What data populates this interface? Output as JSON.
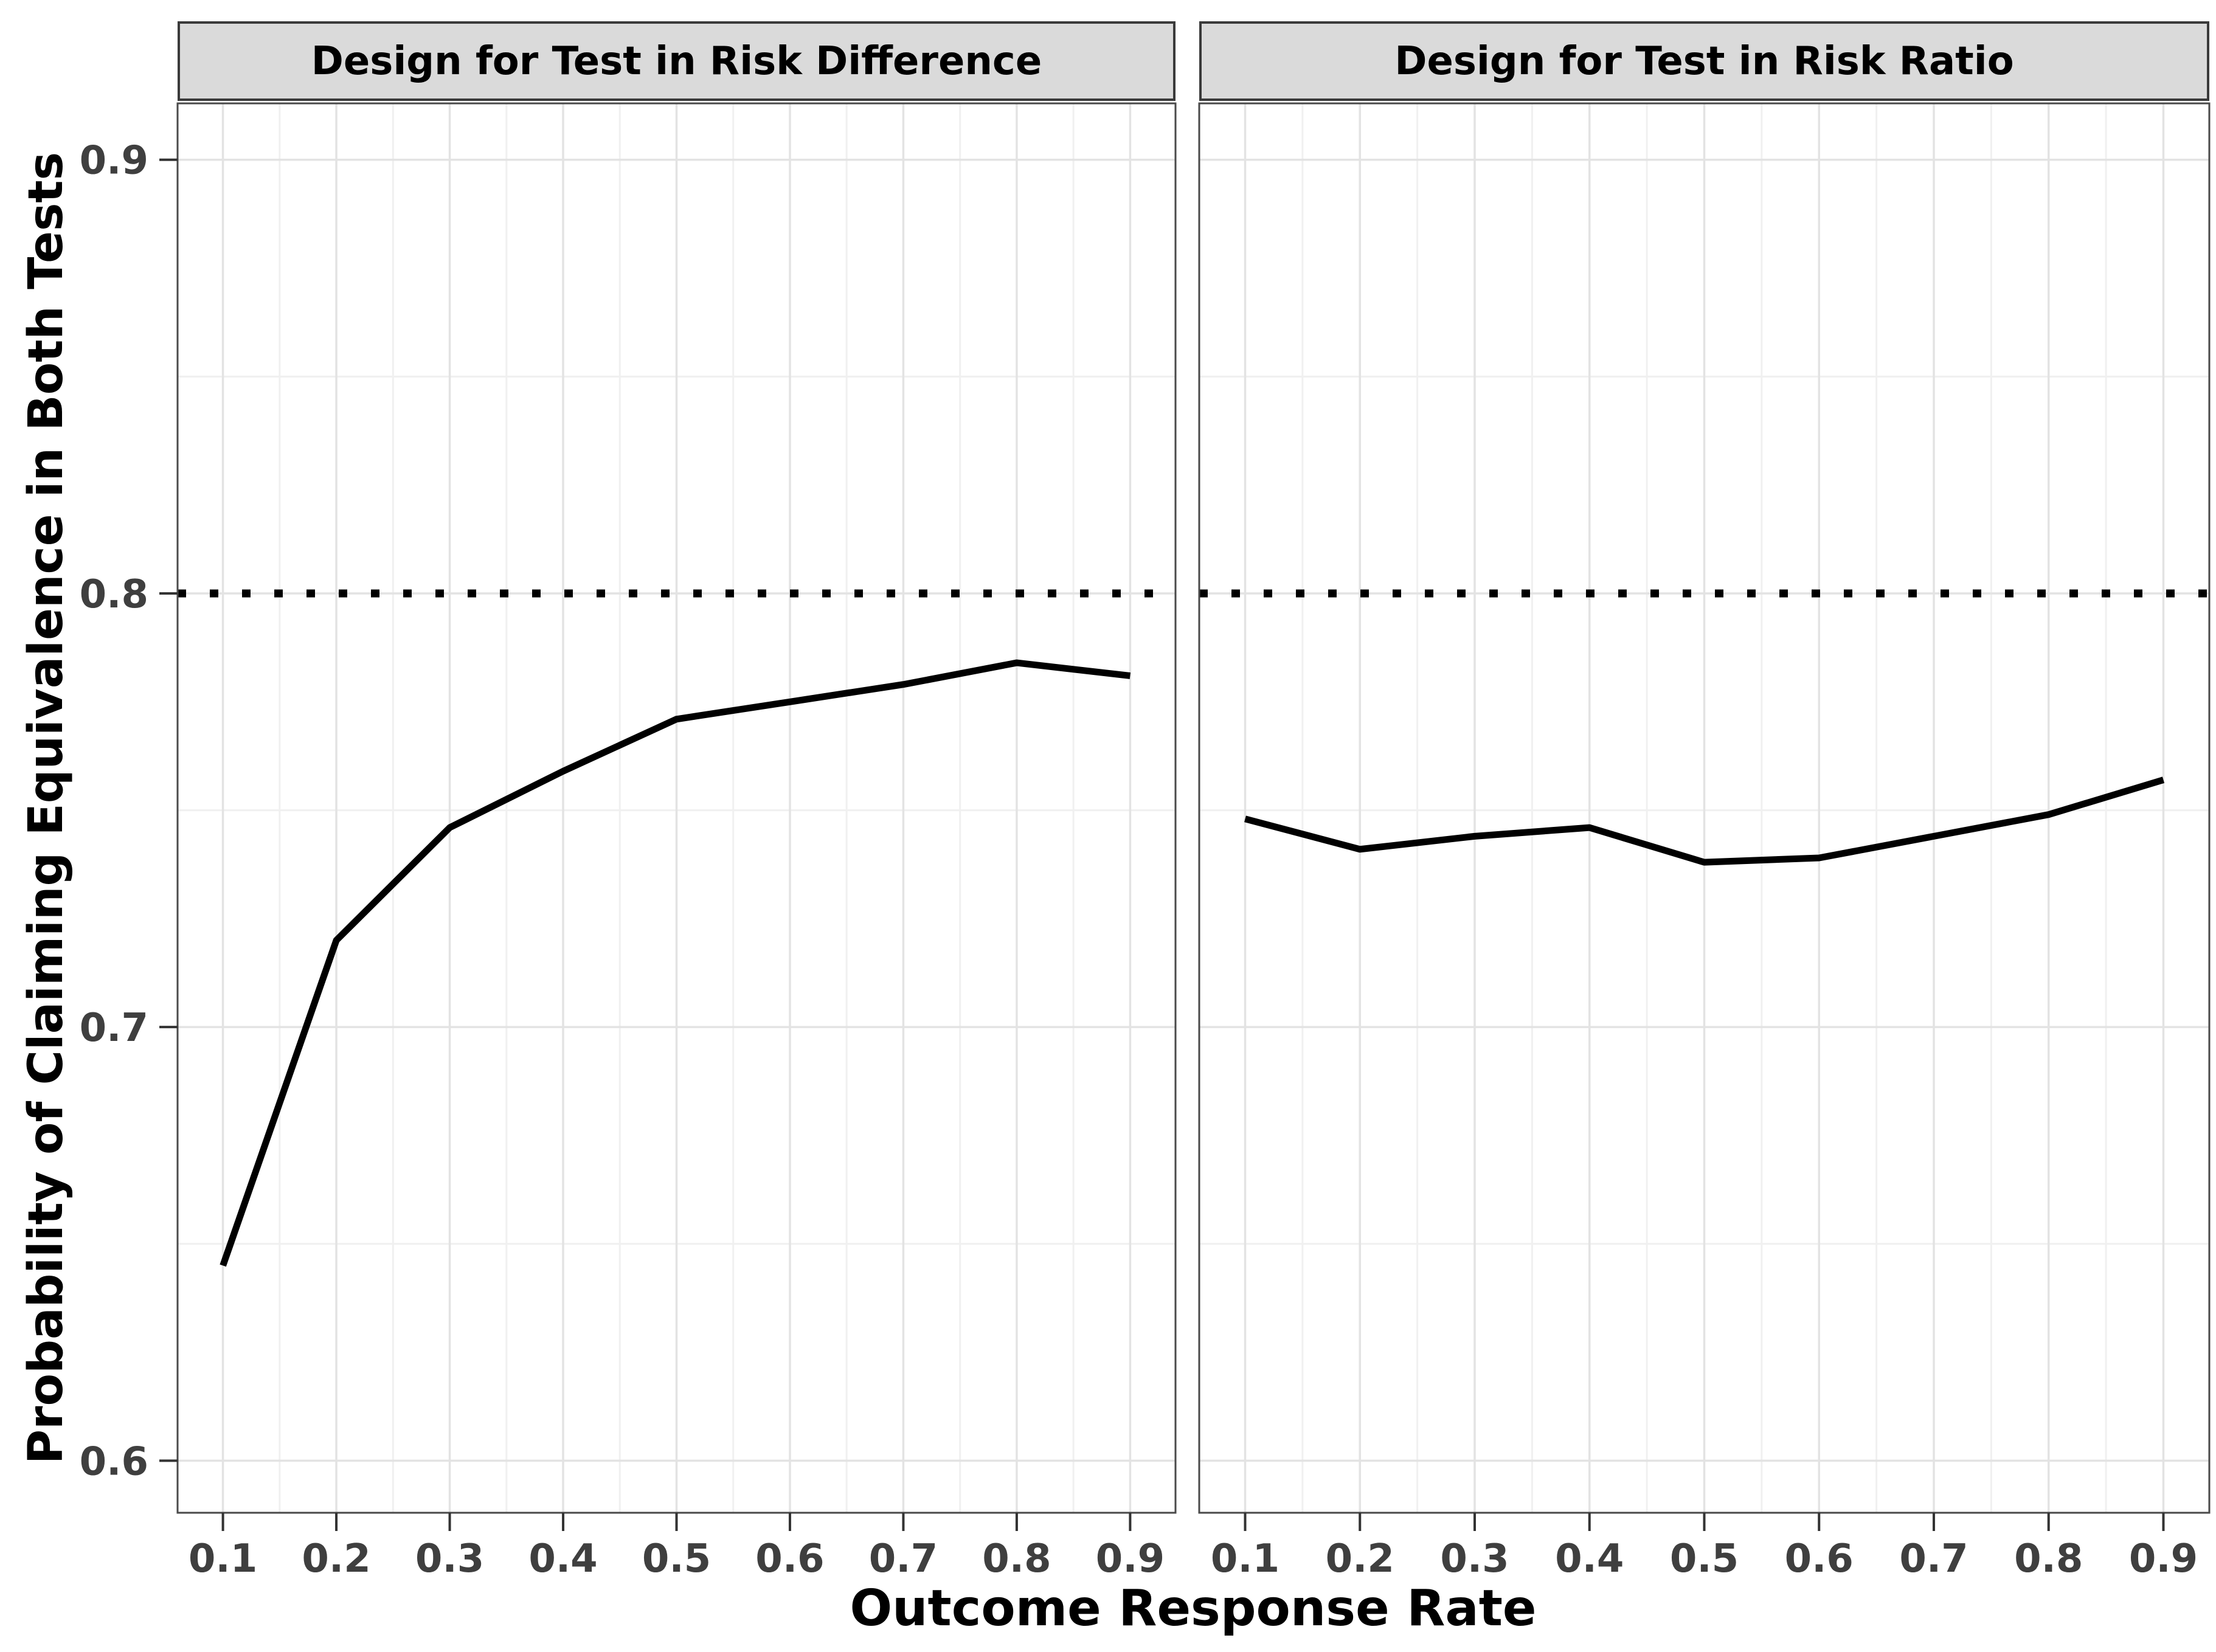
{
  "chart_data": {
    "type": "line",
    "title": "",
    "xlabel": "Outcome Response Rate",
    "ylabel": "Probability of Claiming Equivalence in Both Tests",
    "x": [
      0.1,
      0.2,
      0.3,
      0.4,
      0.5,
      0.6,
      0.7,
      0.8,
      0.9
    ],
    "x_tick_labels": [
      "0.1",
      "0.2",
      "0.3",
      "0.4",
      "0.5",
      "0.6",
      "0.7",
      "0.8",
      "0.9"
    ],
    "y_ticks": [
      0.6,
      0.7,
      0.8,
      0.9
    ],
    "y_tick_labels": [
      "0.6",
      "0.7",
      "0.8",
      "0.9"
    ],
    "x_minor_ticks": [
      0.15,
      0.25,
      0.35,
      0.45,
      0.55,
      0.65,
      0.75,
      0.85
    ],
    "y_minor_ticks": [
      0.65,
      0.75,
      0.85
    ],
    "xlim": [
      0.06,
      0.94
    ],
    "ylim": [
      0.588,
      0.913
    ],
    "grid": true,
    "legend_position": "none",
    "reference_line": {
      "y": 0.8,
      "style": "dotted",
      "color": "#000000"
    },
    "facets": [
      {
        "title": "Design for Test in Risk Difference",
        "values": [
          0.645,
          0.72,
          0.746,
          0.759,
          0.771,
          0.775,
          0.779,
          0.784,
          0.781
        ]
      },
      {
        "title": "Design for Test in Risk Ratio",
        "values": [
          0.748,
          0.741,
          0.744,
          0.746,
          0.738,
          0.739,
          0.744,
          0.749,
          0.757
        ]
      }
    ],
    "line_color": "#000000"
  },
  "colors": {
    "background": "#FFFFFF",
    "strip_fill": "#DADADA",
    "strip_border": "#3A3A3A",
    "panel_border": "#4A4A4A",
    "grid_major": "#E3E3E3",
    "grid_minor": "#F0F0F0",
    "tick_mark": "#333333",
    "tick_label": "#3F3F3F",
    "axis_title": "#000000",
    "line": "#000000",
    "reference_line": "#000000"
  }
}
